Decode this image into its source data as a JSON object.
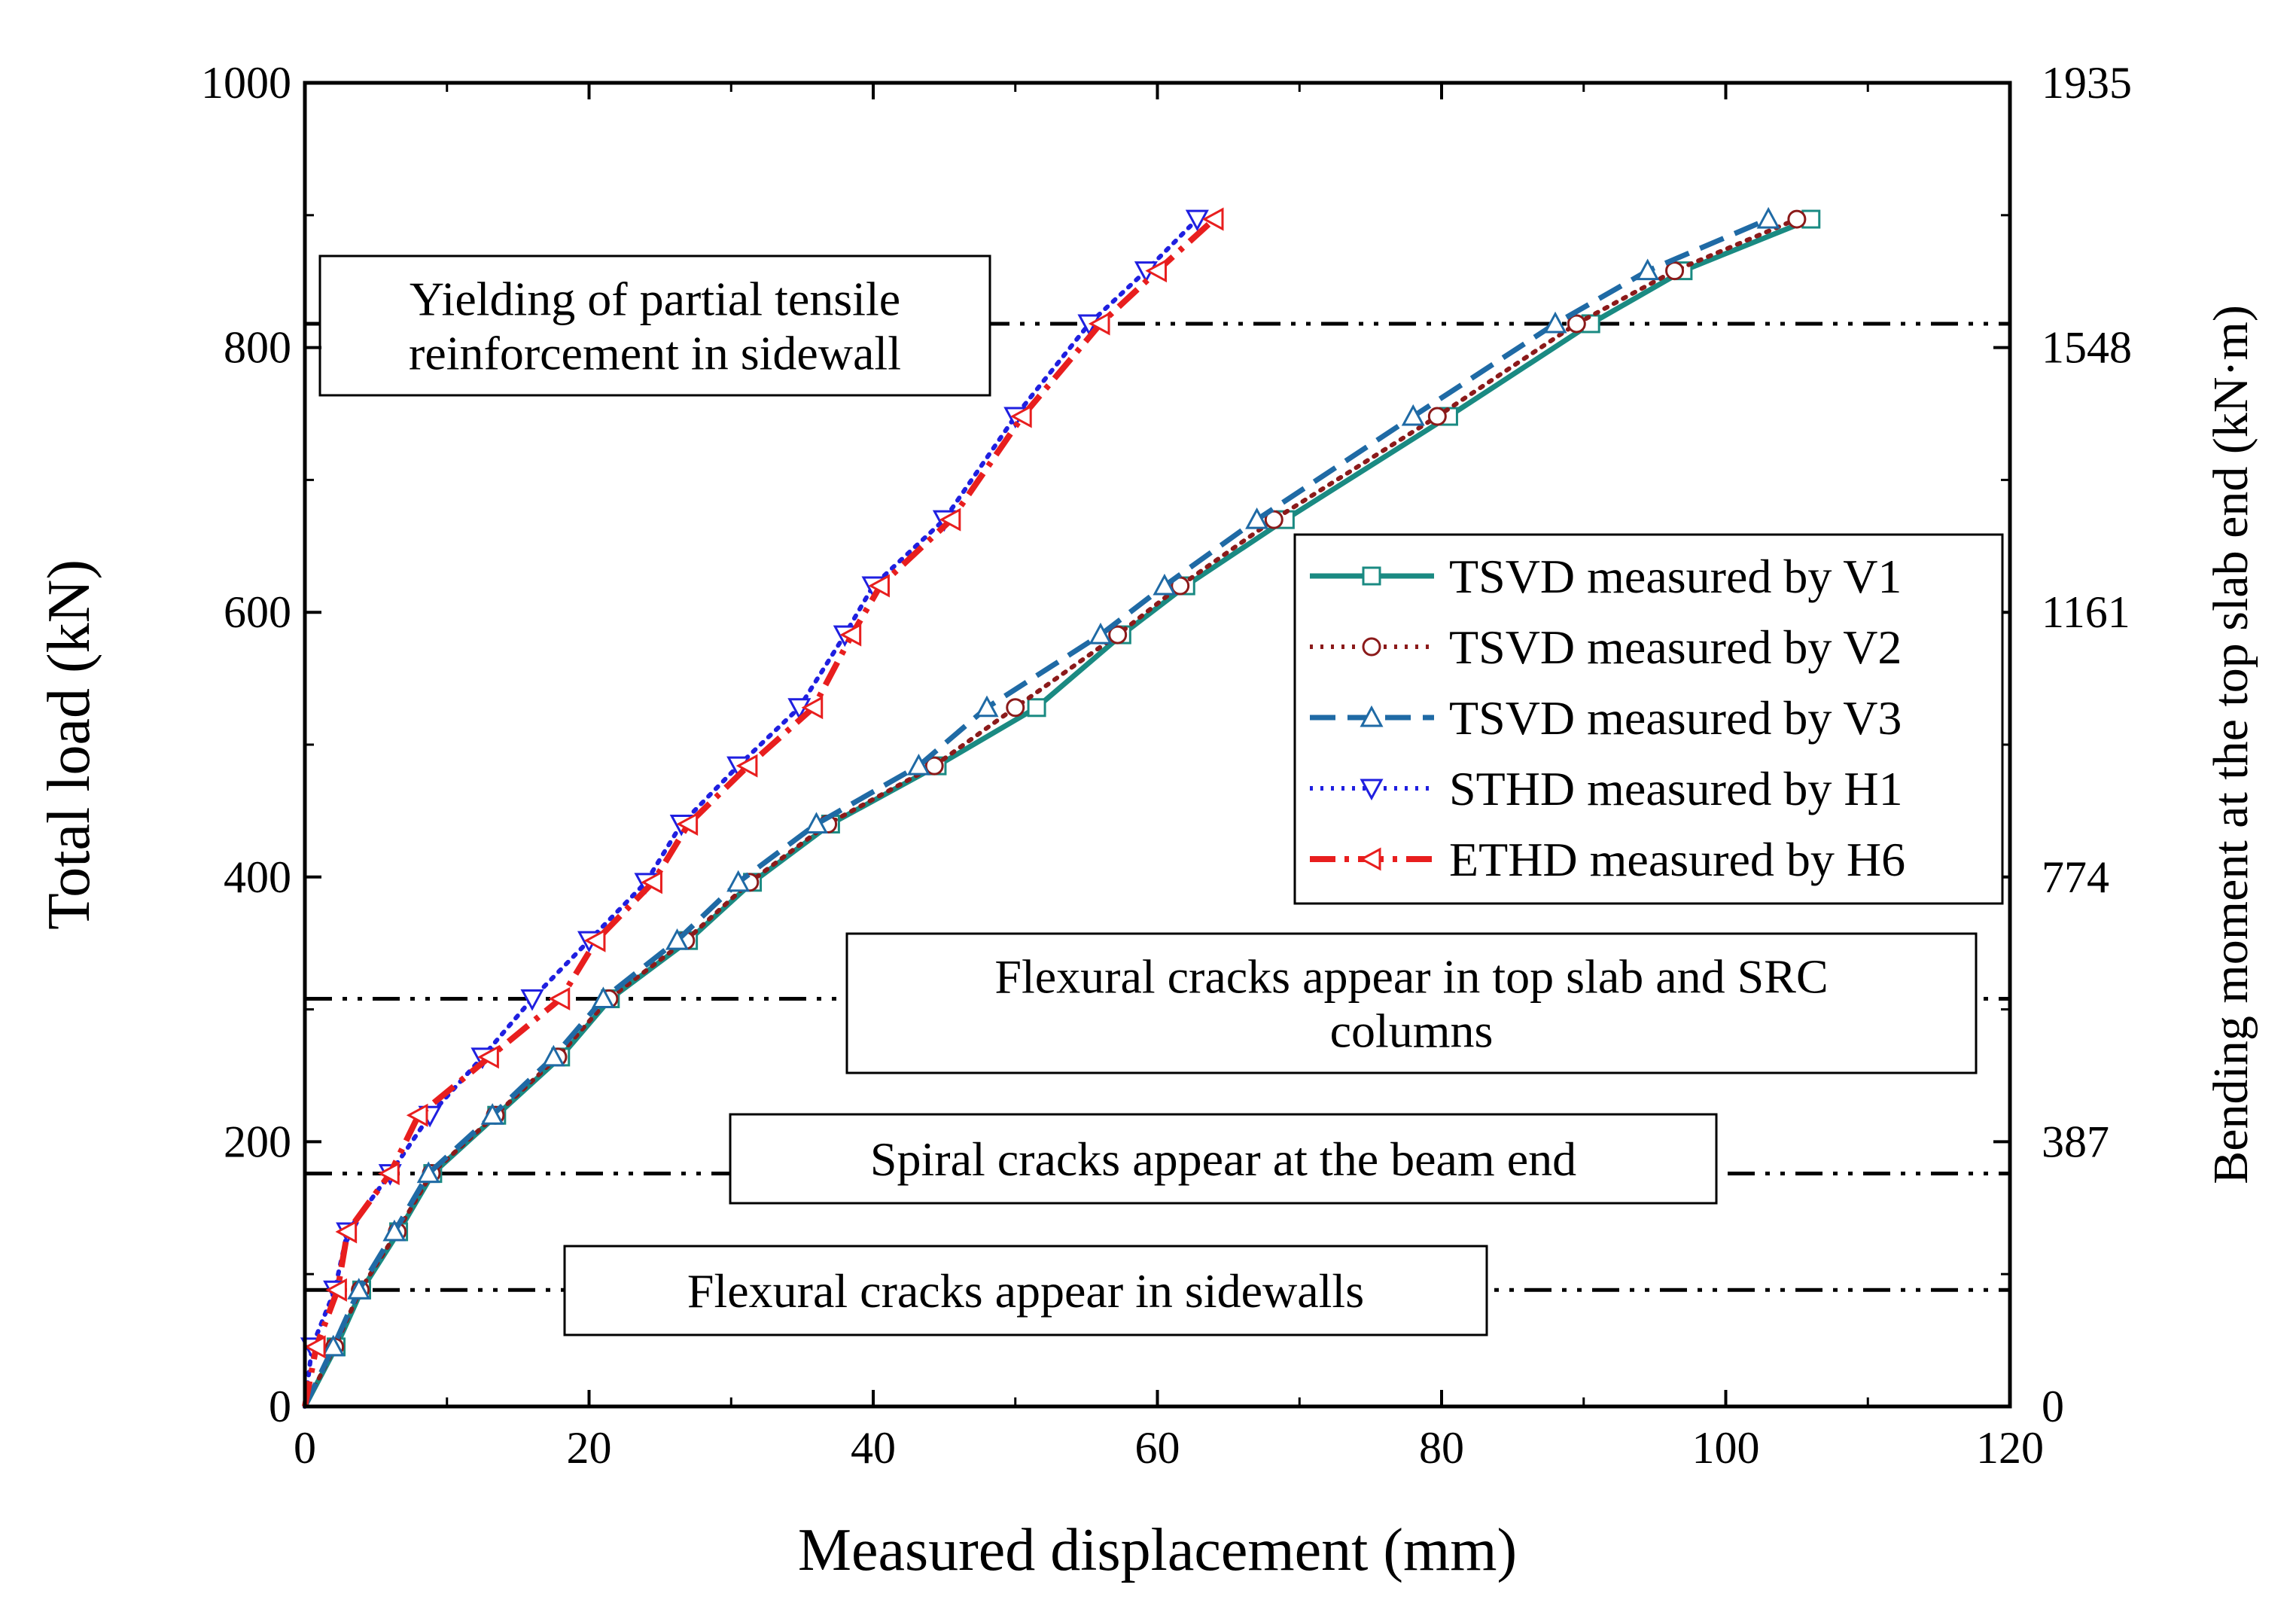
{
  "chart_data": {
    "type": "line",
    "xlabel": "Measured displacement (mm)",
    "ylabel": "Total load  (kN)",
    "y2label": "Bending moment at the top slab end (kN·m)",
    "xlim": [
      0,
      120
    ],
    "ylim": [
      0,
      1000
    ],
    "xticks": [
      0,
      20,
      40,
      60,
      80,
      100,
      120
    ],
    "xtick_labels": [
      "0",
      "20",
      "40",
      "60",
      "80",
      "100",
      "120"
    ],
    "yticks": [
      0,
      200,
      400,
      600,
      800,
      1000
    ],
    "ytick_labels": [
      "0",
      "200",
      "400",
      "600",
      "800",
      "1000"
    ],
    "y2ticks": [
      0,
      200,
      400,
      600,
      800,
      1000
    ],
    "y2tick_labels": [
      "0",
      "387",
      "774",
      "1161",
      "1548",
      "1935"
    ],
    "grid": false,
    "legend_position": "right",
    "series": [
      {
        "name": "TSVD measured by V1",
        "color": "#1a8a82",
        "dash": "solid",
        "marker": "square",
        "x": [
          0,
          2.2,
          4,
          6.6,
          9,
          13.5,
          18,
          21.5,
          27,
          31.5,
          37,
          44.5,
          51.5,
          57.5,
          62,
          69,
          80.5,
          90.5,
          97,
          106
        ],
        "y": [
          0,
          45,
          88,
          132,
          176,
          220,
          264,
          308,
          352,
          396,
          440,
          484,
          528,
          583,
          620,
          670,
          748,
          818,
          858,
          897
        ]
      },
      {
        "name": "TSVD measured by V2",
        "color": "#8b1a1a",
        "dash": "dotted",
        "marker": "circle",
        "x": [
          0,
          2.1,
          3.9,
          6.5,
          8.9,
          13.4,
          17.8,
          21.4,
          26.8,
          31.3,
          36.8,
          44.3,
          50,
          57.2,
          61.6,
          68.2,
          79.7,
          89.5,
          96.4,
          105
        ],
        "y": [
          0,
          45,
          88,
          132,
          176,
          220,
          264,
          308,
          352,
          396,
          440,
          484,
          528,
          583,
          620,
          670,
          748,
          818,
          858,
          897
        ]
      },
      {
        "name": "TSVD measured by V3",
        "color": "#1f6aa5",
        "dash": "dashed",
        "marker": "triangle-up",
        "x": [
          0,
          2,
          3.8,
          6.3,
          8.7,
          13.2,
          17.5,
          21,
          26.2,
          30.5,
          36,
          43.2,
          48,
          56,
          60.5,
          67,
          78,
          88,
          94.5,
          103
        ],
        "y": [
          0,
          45,
          88,
          132,
          176,
          220,
          264,
          308,
          352,
          396,
          440,
          484,
          528,
          583,
          620,
          670,
          748,
          818,
          858,
          897
        ]
      },
      {
        "name": "STHD measured by H1",
        "color": "#1f1fe0",
        "dash": "dotted",
        "marker": "triangle-down",
        "x": [
          0,
          0.5,
          2.1,
          3,
          6,
          8.8,
          12.5,
          16,
          20,
          24,
          26.5,
          30.5,
          34.8,
          38,
          40,
          45,
          50,
          55.2,
          59.2,
          62.8
        ],
        "y": [
          0,
          45,
          88,
          132,
          176,
          220,
          264,
          308,
          352,
          396,
          440,
          484,
          528,
          583,
          620,
          670,
          748,
          818,
          858,
          897
        ]
      },
      {
        "name": "ETHD measured by H6",
        "color": "#e81e1e",
        "dash": "dash-dot",
        "marker": "triangle-left",
        "x": [
          0,
          0.8,
          2.3,
          3,
          6,
          8,
          13,
          18,
          20.5,
          24.5,
          27,
          31.2,
          35.8,
          38.5,
          40.5,
          45.5,
          50.5,
          56,
          60,
          64
        ],
        "y": [
          0,
          45,
          88,
          132,
          176,
          220,
          264,
          308,
          352,
          396,
          440,
          484,
          528,
          583,
          620,
          670,
          748,
          818,
          858,
          897
        ]
      }
    ],
    "reference_lines": [
      {
        "y": 818,
        "label": "Yielding of partial tensile reinforcement in sidewall",
        "lines": [
          "Yielding of partial tensile",
          "reinforcement in sidewall"
        ]
      },
      {
        "y": 308,
        "label": "Flexural cracks appear in top slab and SRC columns",
        "lines": [
          "Flexural cracks appear in top slab and SRC",
          "columns"
        ]
      },
      {
        "y": 176,
        "label": "Spiral cracks appear at the beam end",
        "lines": [
          "Spiral cracks appear at the beam end"
        ]
      },
      {
        "y": 88,
        "label": "Flexural cracks appear in sidewalls",
        "lines": [
          "Flexural cracks appear in sidewalls"
        ]
      }
    ]
  }
}
